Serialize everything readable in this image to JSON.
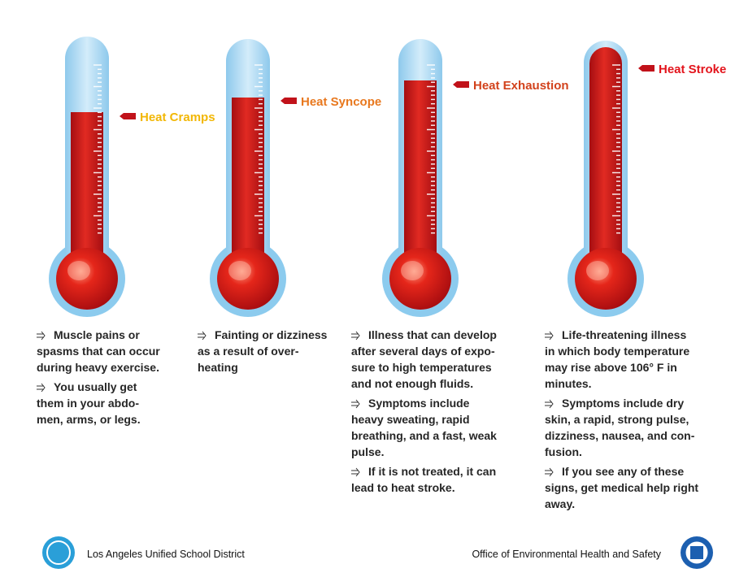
{
  "thermometers": [
    {
      "label": "Heat Cramps",
      "color": "#f2b705",
      "bullets": [
        [
          "Muscle pains or",
          "spasms that can occur",
          "during heavy exercise."
        ],
        [
          "You usually get",
          "them in your abdo-",
          "men, arms, or legs."
        ]
      ]
    },
    {
      "label": "Heat Syncope",
      "color": "#e8781e",
      "bullets": [
        [
          "Fainting or dizziness",
          "as a result of over-",
          "heating"
        ]
      ]
    },
    {
      "label": "Heat Exhaustion",
      "color": "#d2421c",
      "bullets": [
        [
          "Illness that can develop",
          "after several days of expo-",
          "sure to high temperatures",
          "and not enough fluids."
        ],
        [
          "Symptoms include",
          "heavy sweating, rapid",
          "breathing, and a fast, weak",
          "pulse."
        ],
        [
          "If it is not treated, it can",
          "lead to heat stroke."
        ]
      ]
    },
    {
      "label": "Heat Stroke",
      "color": "#e3141c",
      "bullets": [
        [
          "Life-threatening illness",
          "in which body temperature",
          "may rise above 106° F in",
          "minutes."
        ],
        [
          "Symptoms include dry",
          "skin, a rapid, strong pulse,",
          "dizziness, nausea, and con-",
          "fusion."
        ],
        [
          "If you see any of these",
          "signs, get medical help right",
          "away."
        ]
      ]
    }
  ],
  "footer": {
    "left": "Los Angeles Unified School District",
    "right": "Office of Environmental Health and Safety"
  }
}
